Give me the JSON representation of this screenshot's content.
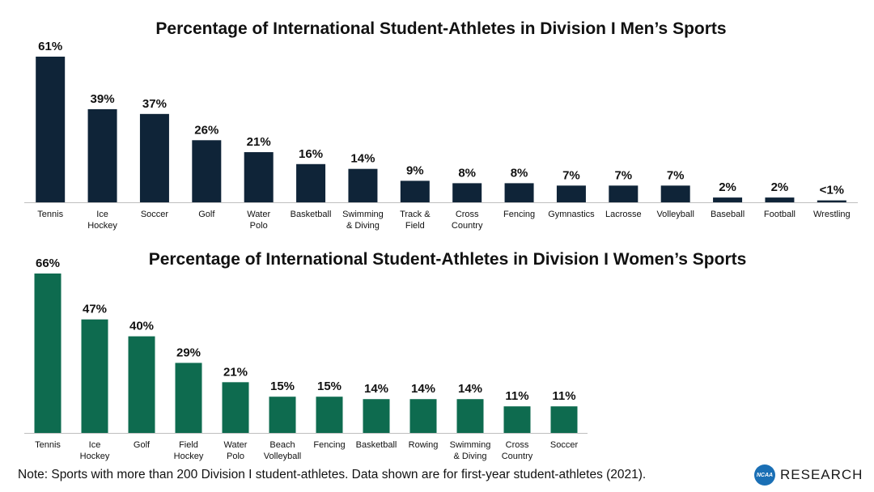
{
  "chart_data": [
    {
      "type": "bar",
      "title": "Percentage of International Student-Athletes in Division I Men’s Sports",
      "categories": [
        "Tennis",
        "Ice Hockey",
        "Soccer",
        "Golf",
        "Water Polo",
        "Basketball",
        "Swimming & Diving",
        "Track & Field",
        "Cross Country",
        "Fencing",
        "Gymnastics",
        "Lacrosse",
        "Volleyball",
        "Baseball",
        "Football",
        "Wrestling"
      ],
      "category_lines": [
        [
          "Tennis"
        ],
        [
          "Ice",
          "Hockey"
        ],
        [
          "Soccer"
        ],
        [
          "Golf"
        ],
        [
          "Water",
          "Polo"
        ],
        [
          "Basketball"
        ],
        [
          "Swimming",
          "& Diving"
        ],
        [
          "Track &",
          "Field"
        ],
        [
          "Cross",
          "Country"
        ],
        [
          "Fencing"
        ],
        [
          "Gymnastics"
        ],
        [
          "Lacrosse"
        ],
        [
          "Volleyball"
        ],
        [
          "Baseball"
        ],
        [
          "Football"
        ],
        [
          "Wrestling"
        ]
      ],
      "values": [
        61,
        39,
        37,
        26,
        21,
        16,
        14,
        9,
        8,
        8,
        7,
        7,
        7,
        2,
        2,
        0.8
      ],
      "labels": [
        "61%",
        "39%",
        "37%",
        "26%",
        "21%",
        "16%",
        "14%",
        "9%",
        "8%",
        "8%",
        "7%",
        "7%",
        "7%",
        "2%",
        "2%",
        "<1%"
      ],
      "color": "#0f2438",
      "xlabel": "",
      "ylabel": "",
      "ylim": [
        0,
        61
      ]
    },
    {
      "type": "bar",
      "title": "Percentage of International Student-Athletes in Division I Women’s Sports",
      "categories": [
        "Tennis",
        "Ice Hockey",
        "Golf",
        "Field Hockey",
        "Water Polo",
        "Beach Volleyball",
        "Fencing",
        "Basketball",
        "Rowing",
        "Swimming & Diving",
        "Cross Country",
        "Soccer"
      ],
      "category_lines": [
        [
          "Tennis"
        ],
        [
          "Ice",
          "Hockey"
        ],
        [
          "Golf"
        ],
        [
          "Field",
          "Hockey"
        ],
        [
          "Water",
          "Polo"
        ],
        [
          "Beach",
          "Volleyball"
        ],
        [
          "Fencing"
        ],
        [
          "Basketball"
        ],
        [
          "Rowing"
        ],
        [
          "Swimming",
          "& Diving"
        ],
        [
          "Cross",
          "Country"
        ],
        [
          "Soccer"
        ]
      ],
      "values": [
        66,
        47,
        40,
        29,
        21,
        15,
        15,
        14,
        14,
        14,
        11,
        11
      ],
      "labels": [
        "66%",
        "47%",
        "40%",
        "29%",
        "21%",
        "15%",
        "15%",
        "14%",
        "14%",
        "14%",
        "11%",
        "11%"
      ],
      "color": "#0e6b4f",
      "xlabel": "",
      "ylabel": "",
      "ylim": [
        0,
        66
      ]
    }
  ],
  "footer": {
    "note": "Note: Sports with more than 200 Division I student-athletes. Data shown are for first-year student-athletes (2021).",
    "logo_text": "NCAA",
    "brand": "RESEARCH"
  }
}
